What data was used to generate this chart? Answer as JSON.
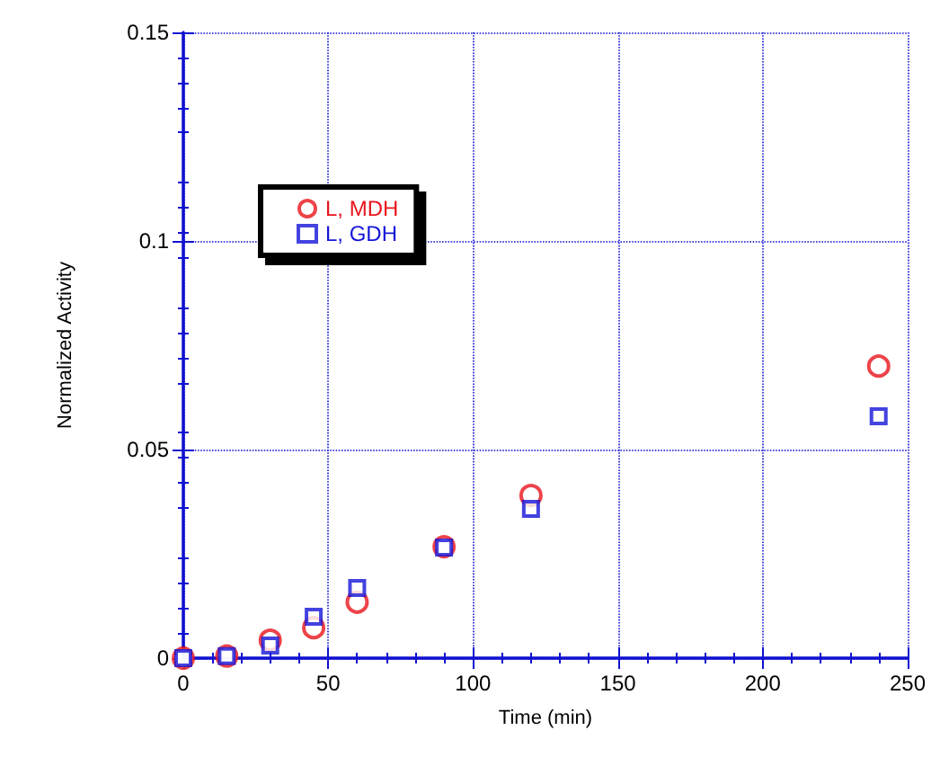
{
  "chart_data": {
    "type": "scatter",
    "xlabel": "Time (min)",
    "ylabel": "Normalized Activity",
    "xlim": [
      0,
      250
    ],
    "xticks": [
      0,
      50,
      100,
      150,
      200,
      250
    ],
    "ylim": [
      0,
      0.15
    ],
    "yticks": [
      0,
      0.05,
      0.1,
      0.15
    ],
    "grid": true,
    "legend": "top left",
    "line_style": "dotted",
    "series": [
      {
        "name": "L, MDH",
        "color": "#e8141c",
        "marker": "circle",
        "x": [
          0,
          15,
          30,
          45,
          60,
          90,
          120,
          240
        ],
        "values": [
          0,
          0.0005,
          0.0043,
          0.0073,
          0.0134,
          0.0267,
          0.039,
          0.07
        ]
      },
      {
        "name": "L, GDH",
        "color": "#1414d8",
        "marker": "square",
        "x": [
          0,
          15,
          30,
          45,
          60,
          90,
          120,
          240
        ],
        "values": [
          0,
          0.0005,
          0.003,
          0.0099,
          0.0168,
          0.0265,
          0.0358,
          0.058
        ]
      }
    ]
  }
}
